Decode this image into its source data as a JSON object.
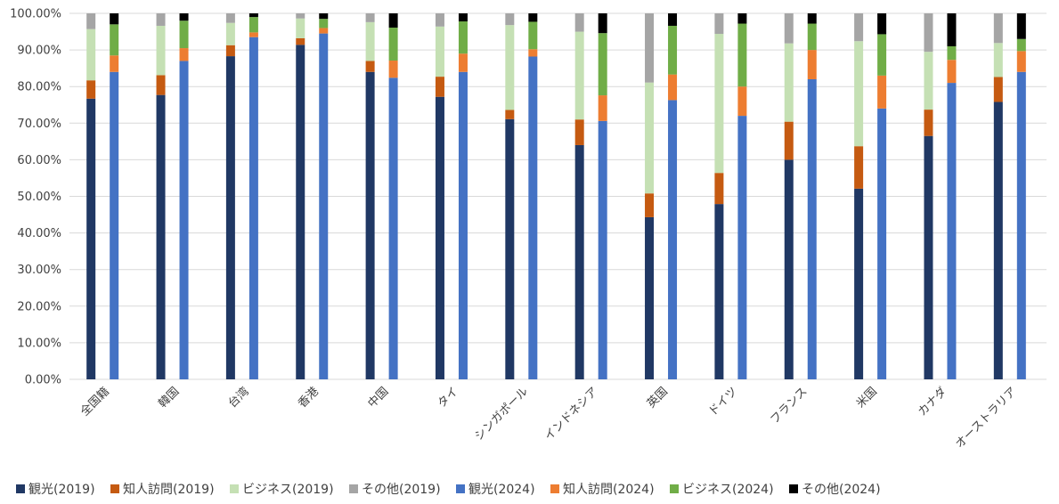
{
  "chart_data": {
    "type": "bar",
    "stacked": true,
    "grouped": true,
    "title": "",
    "xlabel": "",
    "ylabel": "",
    "ylim": [
      0,
      1
    ],
    "y_ticks": [
      "0.00%",
      "10.00%",
      "20.00%",
      "30.00%",
      "40.00%",
      "50.00%",
      "60.00%",
      "70.00%",
      "80.00%",
      "90.00%",
      "100.00%"
    ],
    "grid": true,
    "legend_position": "bottom",
    "categories": [
      "全国籍",
      "韓国",
      "台湾",
      "香港",
      "中国",
      "タイ",
      "シンガポール",
      "インドネシア",
      "英国",
      "ドイツ",
      "フランス",
      "米国",
      "カナダ",
      "オーストラリア"
    ],
    "groups": [
      {
        "year": "2019",
        "series": [
          {
            "name": "観光(2019)",
            "color": "#203864",
            "values": [
              0.767,
              0.777,
              0.883,
              0.914,
              0.84,
              0.772,
              0.711,
              0.64,
              0.443,
              0.479,
              0.6,
              0.521,
              0.665,
              0.758
            ]
          },
          {
            "name": "知人訪問(2019)",
            "color": "#c55a11",
            "values": [
              0.05,
              0.054,
              0.03,
              0.018,
              0.03,
              0.055,
              0.025,
              0.07,
              0.065,
              0.085,
              0.104,
              0.116,
              0.072,
              0.068
            ]
          },
          {
            "name": "ビジネス(2019)",
            "color": "#c5e0b4",
            "values": [
              0.14,
              0.135,
              0.061,
              0.054,
              0.106,
              0.137,
              0.232,
              0.24,
              0.303,
              0.38,
              0.214,
              0.287,
              0.158,
              0.093
            ]
          },
          {
            "name": "その他(2019)",
            "color": "#a5a5a5",
            "values": [
              0.043,
              0.034,
              0.026,
              0.014,
              0.024,
              0.036,
              0.032,
              0.05,
              0.189,
              0.056,
              0.082,
              0.076,
              0.105,
              0.081
            ]
          }
        ]
      },
      {
        "year": "2024",
        "series": [
          {
            "name": "観光(2024)",
            "color": "#4472c4",
            "values": [
              0.84,
              0.87,
              0.935,
              0.945,
              0.824,
              0.84,
              0.882,
              0.706,
              0.763,
              0.72,
              0.82,
              0.74,
              0.81,
              0.84
            ]
          },
          {
            "name": "知人訪問(2024)",
            "color": "#ed7d31",
            "values": [
              0.045,
              0.035,
              0.013,
              0.015,
              0.047,
              0.05,
              0.02,
              0.07,
              0.07,
              0.08,
              0.08,
              0.09,
              0.063,
              0.057
            ]
          },
          {
            "name": "ビジネス(2024)",
            "color": "#70ad47",
            "values": [
              0.085,
              0.075,
              0.042,
              0.025,
              0.09,
              0.088,
              0.075,
              0.17,
              0.133,
              0.172,
              0.072,
              0.113,
              0.037,
              0.033
            ]
          },
          {
            "name": "その他(2024)",
            "color": "#000000",
            "values": [
              0.03,
              0.02,
              0.01,
              0.015,
              0.039,
              0.022,
              0.023,
              0.054,
              0.034,
              0.028,
              0.028,
              0.057,
              0.09,
              0.07
            ]
          }
        ]
      }
    ],
    "legend": [
      "観光(2019)",
      "知人訪問(2019)",
      "ビジネス(2019)",
      "その他(2019)",
      "観光(2024)",
      "知人訪問(2024)",
      "ビジネス(2024)",
      "その他(2024)"
    ]
  }
}
